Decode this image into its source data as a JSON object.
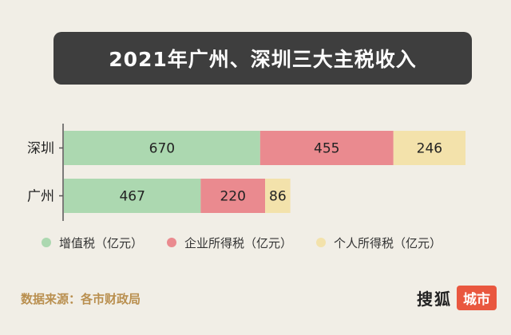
{
  "title": "2021年广州、深圳三大主税收入",
  "chart_data": {
    "type": "bar",
    "orientation": "horizontal",
    "stacked": true,
    "categories": [
      "深圳",
      "广州"
    ],
    "series": [
      {
        "name": "增值税（亿元）",
        "values": [
          670,
          467
        ],
        "color": "#acd8b0"
      },
      {
        "name": "企业所得税（亿元）",
        "values": [
          455,
          220
        ],
        "color": "#ea8a8f"
      },
      {
        "name": "个人所得税（亿元）",
        "values": [
          246,
          86
        ],
        "color": "#f3e2ab"
      }
    ],
    "xlim": [
      0,
      1371
    ],
    "legend_position": "bottom",
    "grid": false
  },
  "source": "数据来源：各市财政局",
  "logo": {
    "main": "搜狐",
    "tag": "城市"
  }
}
